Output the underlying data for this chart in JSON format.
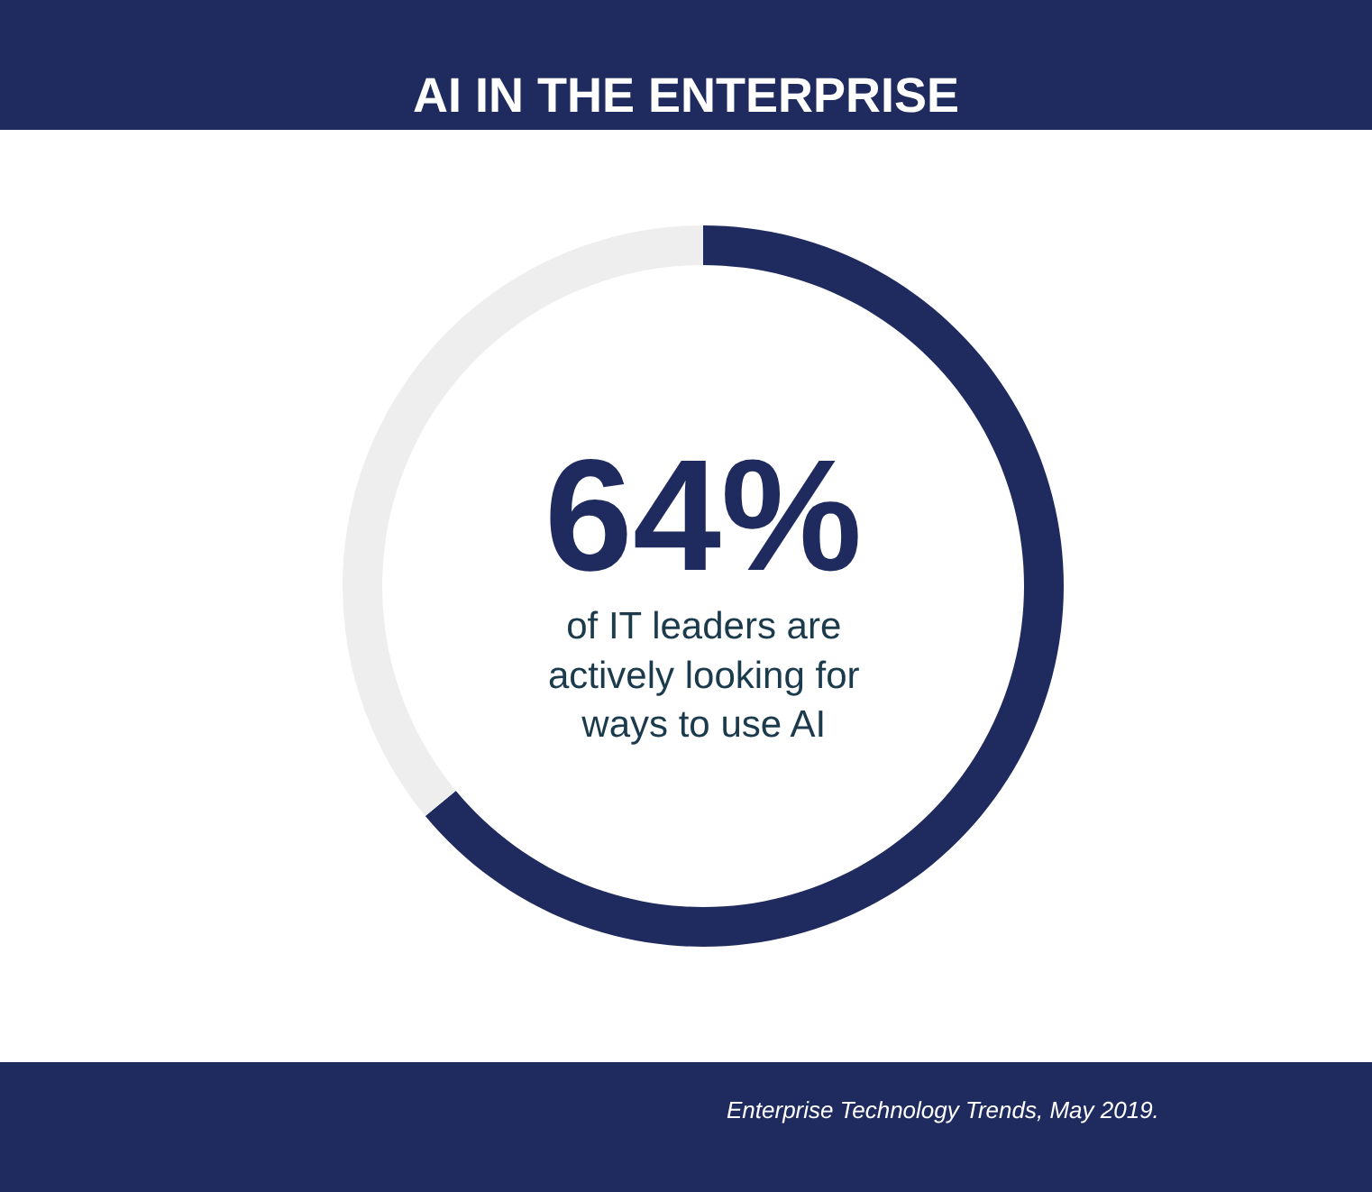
{
  "chart_data": {
    "type": "donut",
    "title": "AI IN THE ENTERPRISE",
    "categories": [
      null,
      null
    ],
    "values": [
      64,
      36
    ],
    "colors": [
      "#1f2a5e",
      "#eeeeee"
    ],
    "value_labels": [
      "64%",
      null
    ],
    "annotations": [
      "of IT leaders are actively looking for ways to use AI",
      "Enterprise Technology Trends, May 2019."
    ]
  }
}
